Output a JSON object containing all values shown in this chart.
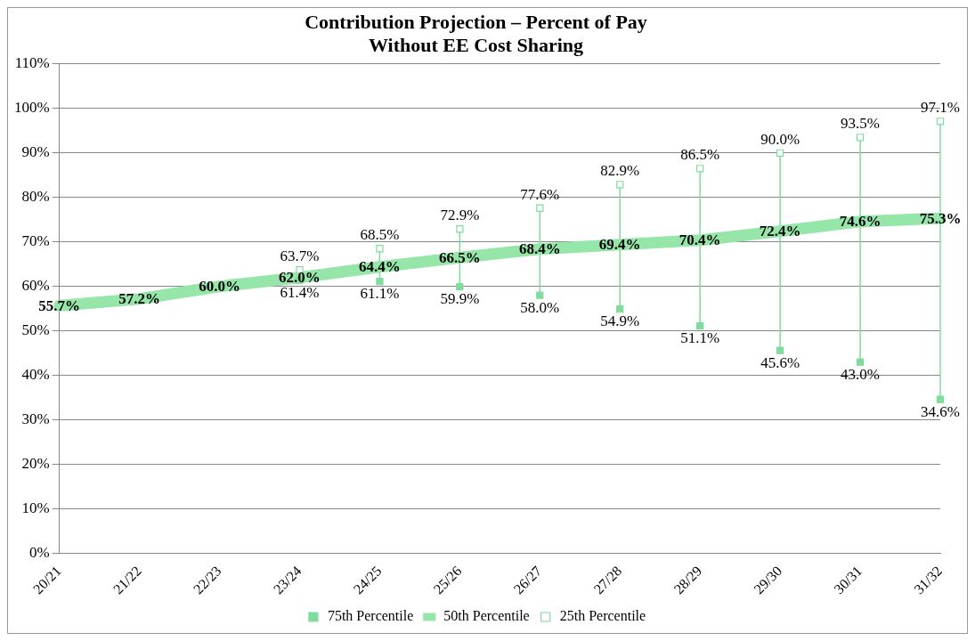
{
  "chart_data": {
    "type": "line",
    "title": "Contribution Projection – Percent of Pay\nWithout EE Cost Sharing",
    "categories": [
      "20/21",
      "21/22",
      "22/23",
      "23/24",
      "24/25",
      "25/26",
      "26/27",
      "27/28",
      "28/29",
      "29/30",
      "30/31",
      "31/32"
    ],
    "series": [
      {
        "name": "75th Percentile",
        "type": "scatter",
        "marker": "square",
        "color": "#7fdc9c",
        "values": [
          null,
          null,
          null,
          61.4,
          61.1,
          59.9,
          58.0,
          54.9,
          51.1,
          45.6,
          43.0,
          34.6
        ],
        "value_labels": [
          null,
          null,
          null,
          "61.4%",
          "61.1%",
          "59.9%",
          "58.0%",
          "54.9%",
          "51.1%",
          "45.6%",
          "43.0%",
          "34.6%"
        ]
      },
      {
        "name": "50th Percentile",
        "type": "line",
        "marker": "none",
        "color": "#95e6a8",
        "values": [
          55.7,
          57.2,
          60.0,
          62.0,
          64.4,
          66.5,
          68.4,
          69.4,
          70.4,
          72.4,
          74.6,
          75.3
        ],
        "value_labels": [
          "55.7%",
          "57.2%",
          "60.0%",
          "62.0%",
          "64.4%",
          "66.5%",
          "68.4%",
          "69.4%",
          "70.4%",
          "72.4%",
          "74.6%",
          "75.3%"
        ]
      },
      {
        "name": "25th Percentile",
        "type": "scatter",
        "marker": "square",
        "color": "#7fdc9c",
        "values": [
          null,
          null,
          null,
          63.7,
          68.5,
          72.9,
          77.6,
          82.9,
          86.5,
          90.0,
          93.5,
          97.1
        ],
        "value_labels": [
          null,
          null,
          null,
          "63.7%",
          "68.5%",
          "72.9%",
          "77.6%",
          "82.9%",
          "86.5%",
          "90.0%",
          "93.5%",
          "97.1%"
        ]
      }
    ],
    "ylim": [
      0,
      110
    ],
    "yticks": [
      {
        "value": 0,
        "label": "0%"
      },
      {
        "value": 10,
        "label": "10%"
      },
      {
        "value": 20,
        "label": "20%"
      },
      {
        "value": 30,
        "label": "30%"
      },
      {
        "value": 40,
        "label": "40%"
      },
      {
        "value": 50,
        "label": "50%"
      },
      {
        "value": 60,
        "label": "60%"
      },
      {
        "value": 70,
        "label": "70%"
      },
      {
        "value": 80,
        "label": "80%"
      },
      {
        "value": 90,
        "label": "90%"
      },
      {
        "value": 100,
        "label": "100%"
      },
      {
        "value": 110,
        "label": "110%"
      }
    ],
    "grid": "y",
    "legend": "bottom"
  }
}
